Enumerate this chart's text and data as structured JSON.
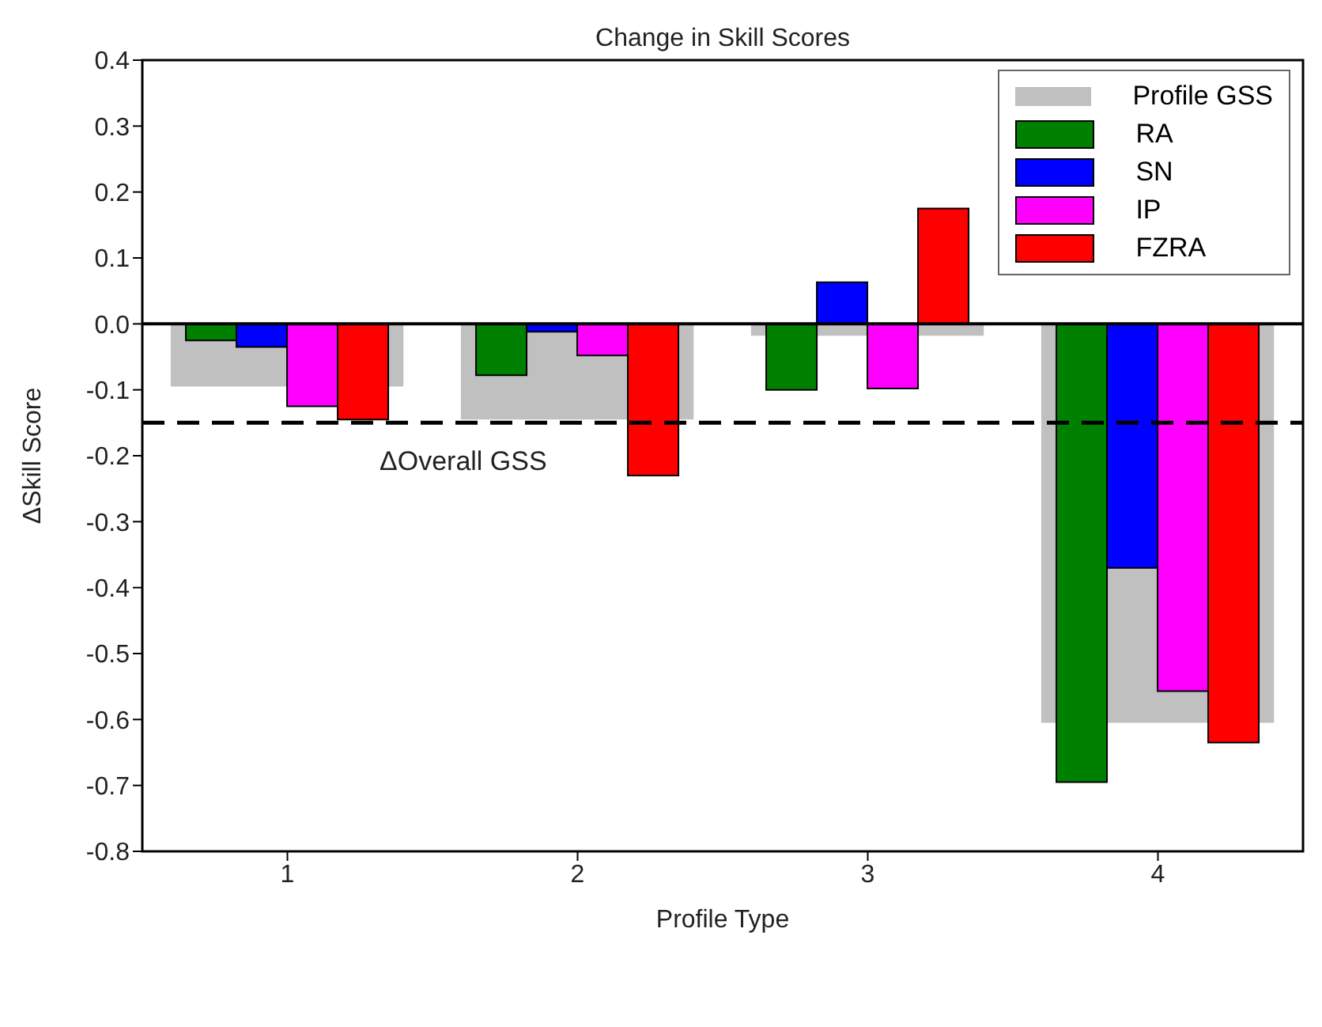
{
  "chart_data": {
    "type": "bar",
    "title": "Change in Skill Scores",
    "xlabel": "Profile Type",
    "ylabel": "ΔSkill Score",
    "categories": [
      "1",
      "2",
      "3",
      "4"
    ],
    "series": [
      {
        "name": "Profile GSS",
        "color": "#c0c0c0",
        "values": [
          -0.095,
          -0.145,
          -0.018,
          -0.605
        ]
      },
      {
        "name": "RA",
        "color": "#008000",
        "values": [
          -0.025,
          -0.078,
          -0.1,
          -0.695
        ]
      },
      {
        "name": "SN",
        "color": "#0000ff",
        "values": [
          -0.035,
          -0.012,
          0.063,
          -0.37
        ]
      },
      {
        "name": "IP",
        "color": "#ff00ff",
        "values": [
          -0.125,
          -0.048,
          -0.098,
          -0.557
        ]
      },
      {
        "name": "FZRA",
        "color": "#ff0000",
        "values": [
          -0.145,
          -0.23,
          0.175,
          -0.635
        ]
      }
    ],
    "ylim": [
      -0.8,
      0.4
    ],
    "yticks": [
      {
        "value": -0.8,
        "label": "-0.8"
      },
      {
        "value": -0.7,
        "label": "-0.7"
      },
      {
        "value": -0.6,
        "label": "-0.6"
      },
      {
        "value": -0.5,
        "label": "-0.5"
      },
      {
        "value": -0.4,
        "label": "-0.4"
      },
      {
        "value": -0.3,
        "label": "-0.3"
      },
      {
        "value": -0.2,
        "label": "-0.2"
      },
      {
        "value": -0.1,
        "label": "-0.1"
      },
      {
        "value": 0,
        "label": "0.0"
      },
      {
        "value": 0.1,
        "label": "0.1"
      },
      {
        "value": 0.2,
        "label": "0.2"
      },
      {
        "value": 0.3,
        "label": "0.3"
      },
      {
        "value": 0.4,
        "label": "0.4"
      }
    ],
    "ref_lines": [
      {
        "axis": "y",
        "value": 0,
        "line_style": "solid",
        "color": "#000000"
      },
      {
        "axis": "y",
        "value": -0.15,
        "label": "ΔOverall GSS",
        "line_style": "dashed",
        "color": "#000000"
      }
    ],
    "legend": "top right"
  }
}
